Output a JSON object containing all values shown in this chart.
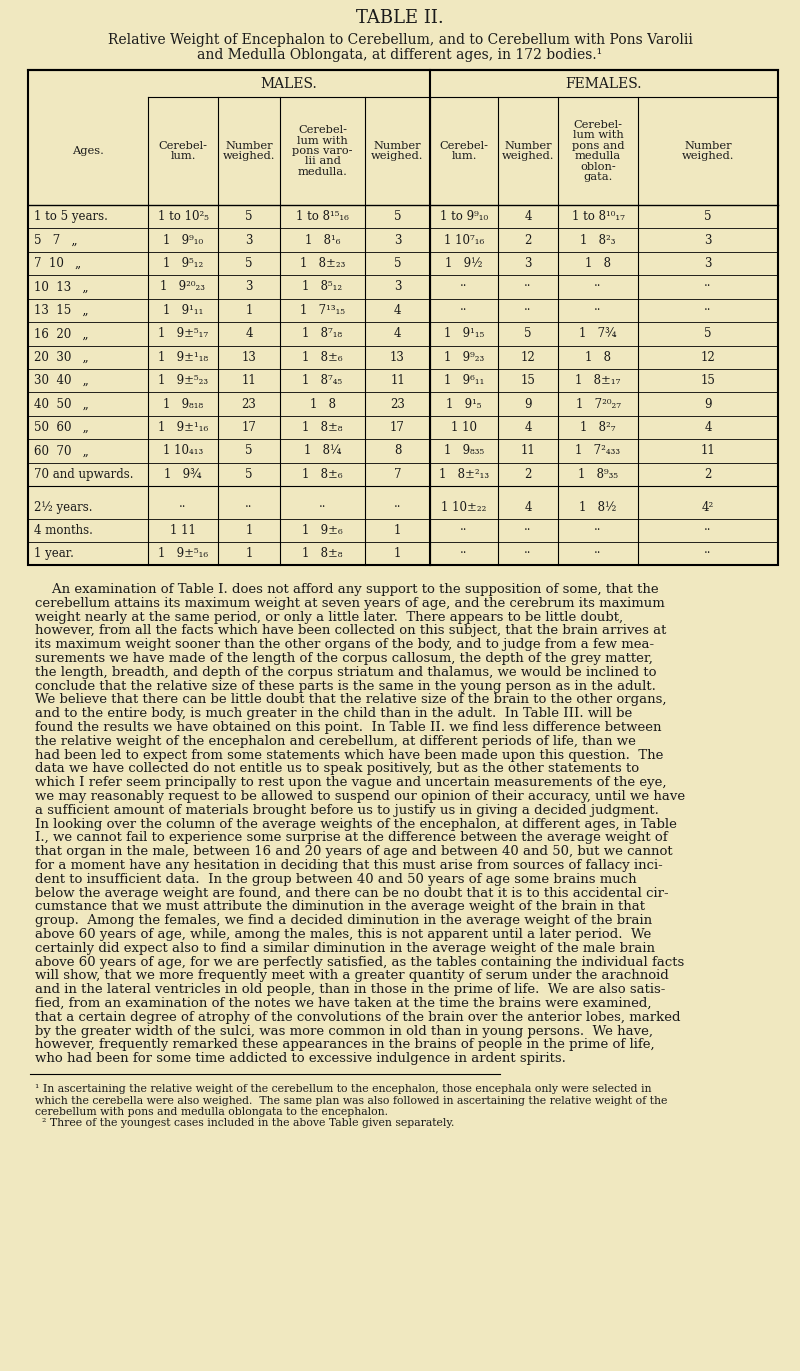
{
  "title": "TABLE II.",
  "subtitle_line1": "Relative Weight of Encephalon to Cerebellum, and to Cerebellum with Pons Varolii",
  "subtitle_line2": "and Medulla Oblongata, at different ages, in 172 bodies.¹",
  "bg_color": "#f0e8c0",
  "header_males": "MALES.",
  "header_females": "FEMALES.",
  "rows": [
    [
      "1 to 5 years.",
      "1 to 10²₅",
      "5",
      "1 to 8¹⁵₁₆",
      "5",
      "1 to 9⁹₁₀",
      "4",
      "1 to 8¹⁰₁₇",
      "5"
    ],
    [
      "5   7   „",
      "1   9⁹₁₀",
      "3",
      "1   8¹₆",
      "3",
      "1 10⁷₁₆",
      "2",
      "1   8²₃",
      "3"
    ],
    [
      "7  10   „",
      "1   9⁵₁₂",
      "5",
      "1   8±₂₃",
      "5",
      "1   9½",
      "3",
      "1   8",
      "3"
    ],
    [
      "10  13   „",
      "1   9²⁰₂₃",
      "3",
      "1   8⁵₁₂",
      "3",
      "..",
      "..",
      "..",
      ".."
    ],
    [
      "13  15   „",
      "1   9¹₁₁",
      "1",
      "1   7¹³₁₅",
      "4",
      "..",
      "..",
      "..",
      ".."
    ],
    [
      "16  20   „",
      "1   9±⁵₁₇",
      "4",
      "1   8⁷₁₈",
      "4",
      "1   9¹₁₅",
      "5",
      "1   7¾",
      "5"
    ],
    [
      "20  30   „",
      "1   9±¹₁₈",
      "13",
      "1   8±₆",
      "13",
      "1   9⁹₂₃",
      "12",
      "1   8",
      "12"
    ],
    [
      "30  40   „",
      "1   9±⁵₂₃",
      "11",
      "1   8⁷₄₅",
      "11",
      "1   9⁶₁₁",
      "15",
      "1   8±₁₇",
      "15"
    ],
    [
      "40  50   „",
      "1   9₈₁₈",
      "23",
      "1   8",
      "23",
      "1   9¹₅",
      "9",
      "1   7²⁰₂₇",
      "9"
    ],
    [
      "50  60   „",
      "1   9±¹₁₆",
      "17",
      "1   8±₈",
      "17",
      "1 10",
      "4",
      "1   8²₇",
      "4"
    ],
    [
      "60  70   „",
      "1 10₄₁₃",
      "5",
      "1   8¼",
      "8",
      "1   9₈₃₅",
      "11",
      "1   7²₄₃₃",
      "11"
    ],
    [
      "70 and upwards.",
      "1   9¾",
      "5",
      "1   8±₆",
      "7",
      "1   8±²₁₃",
      "2",
      "1   8⁹₃₅",
      "2"
    ],
    [
      "SEPARATOR",
      "",
      "",
      "",
      "",
      "",
      "",
      "",
      ""
    ],
    [
      "2½ years.",
      "..",
      "..",
      "..",
      "..",
      "1 10±₂₂",
      "4",
      "1   8½",
      "4²"
    ],
    [
      "4 months.",
      "1 11",
      "1",
      "1   9±₆",
      "1",
      "..",
      "..",
      "..",
      ".."
    ],
    [
      "1 year.",
      "1   9±⁵₁₆",
      "1",
      "1   8±₈",
      "1",
      "..",
      "..",
      "..",
      ".."
    ]
  ],
  "body_text": [
    "    An examination of Table I. does not afford any support to the supposition of some, that the",
    "cerebellum attains its maximum weight at seven years of age, and the cerebrum its maximum",
    "weight nearly at the same period, or only a little later.  There appears to be little doubt,",
    "however, from all the facts which have been collected on this subject, that the brain arrives at",
    "its maximum weight sooner than the other organs of the body, and to judge from a few mea-",
    "surements we have made of the length of the corpus callosum, the depth of the grey matter,",
    "the length, breadth, and depth of the corpus striatum and thalamus, we would be inclined to",
    "conclude that the relative size of these parts is the same in the young person as in the adult.",
    "We believe that there can be little doubt that the relative size of the brain to the other organs,",
    "and to the entire body, is much greater in the child than in the adult.  In Table III. will be",
    "found the results we have obtained on this point.  In Table II. we find less difference between",
    "the relative weight of the encephalon and cerebellum, at different periods of life, than we",
    "had been led to expect from some statements which have been made upon this question.  The",
    "data we have collected do not entitle us to speak positively, but as the other statements to",
    "which I refer seem principally to rest upon the vague and uncertain measurements of the eye,",
    "we may reasonably request to be allowed to suspend our opinion of their accuracy, until we have",
    "a sufficient amount of materials brought before us to justify us in giving a decided judgment.",
    "In looking over the column of the average weights of the encephalon, at different ages, in Table",
    "I., we cannot fail to experience some surprise at the difference between the average weight of",
    "that organ in the male, between 16 and 20 years of age and between 40 and 50, but we cannot",
    "for a moment have any hesitation in deciding that this must arise from sources of fallacy inci-",
    "dent to insufficient data.  In the group between 40 and 50 years of age some brains much",
    "below the average weight are found, and there can be no doubt that it is to this accidental cir-",
    "cumstance that we must attribute the diminution in the average weight of the brain in that",
    "group.  Among the females, we find a decided diminution in the average weight of the brain",
    "above 60 years of age, while, among the males, this is not apparent until a later period.  We",
    "certainly did expect also to find a similar diminution in the average weight of the male brain",
    "above 60 years of age, for we are perfectly satisfied, as the tables containing the individual facts",
    "will show, that we more frequently meet with a greater quantity of serum under the arachnoid",
    "and in the lateral ventricles in old people, than in those in the prime of life.  We are also satis-",
    "fied, from an examination of the notes we have taken at the time the brains were examined,",
    "that a certain degree of atrophy of the convolutions of the brain over the anterior lobes, marked",
    "by the greater width of the sulci, was more common in old than in young persons.  We have,",
    "however, frequently remarked these appearances in the brains of people in the prime of life,",
    "who had been for some time addicted to excessive indulgence in ardent spirits."
  ],
  "footnote_line1": "¹ In ascertaining the relative weight of the cerebellum to the encephalon, those encephala only were selected in",
  "footnote_line2": "which the cerebella were also weighed.  The same plan was also followed in ascertaining the relative weight of the",
  "footnote_line3": "cerebellum with pons and medulla oblongata to the encephalon.",
  "footnote_line4": "  ² Three of the youngest cases included in the above Table given separately."
}
